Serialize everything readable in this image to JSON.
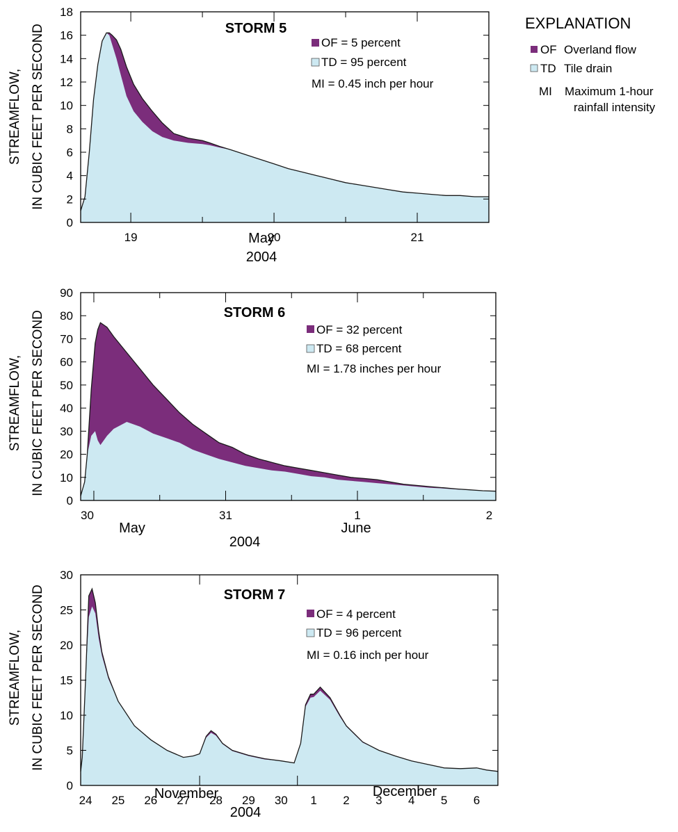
{
  "colors": {
    "overland_flow": "#7b2d7b",
    "tile_drain": "#cde9f2",
    "line": "#1a1a1a",
    "axis": "#000000"
  },
  "explanation": {
    "title": "EXPLANATION",
    "of_code": "OF",
    "of_text": "Overland flow",
    "td_code": "TD",
    "td_text": "Tile drain",
    "mi_code": "MI",
    "mi_text_1": "Maximum 1-hour",
    "mi_text_2": "rainfall intensity"
  },
  "chart_data": [
    {
      "type": "area",
      "title": "STORM 5",
      "legend": [
        "OF = 5 percent",
        "TD = 95 percent",
        "MI = 0.45 inch per hour"
      ],
      "ylabel": [
        "STREAMFLOW,",
        "IN CUBIC FEET PER SECOND"
      ],
      "xlabel": [
        "May",
        "2004"
      ],
      "ylim": [
        0,
        18
      ],
      "yticks": [
        0,
        2,
        4,
        6,
        8,
        10,
        12,
        14,
        16,
        18
      ],
      "x_unit": "days since 2004-05-18 00:00",
      "xlim": [
        0.65,
        3.5
      ],
      "major_ticks": [
        1.0,
        2.0,
        3.0
      ],
      "minor_ticks": [
        1.5,
        2.5
      ],
      "tick_labels": [
        {
          "x": 1.0,
          "text": "19"
        },
        {
          "x": 2.0,
          "text": "20"
        },
        {
          "x": 3.0,
          "text": "21"
        }
      ],
      "series": [
        {
          "name": "Overland flow",
          "key": "total",
          "x": [
            0.65,
            0.68,
            0.71,
            0.74,
            0.77,
            0.8,
            0.83,
            0.85,
            0.87,
            0.9,
            0.93,
            0.97,
            1.02,
            1.08,
            1.15,
            1.22,
            1.3,
            1.4,
            1.5,
            1.55,
            1.62,
            1.7,
            1.8,
            1.9,
            2.0,
            2.1,
            2.2,
            2.3,
            2.4,
            2.5,
            2.6,
            2.7,
            2.8,
            2.9,
            3.0,
            3.1,
            3.2,
            3.3,
            3.4,
            3.5
          ],
          "values": [
            1.0,
            2.2,
            6.0,
            10.5,
            13.5,
            15.5,
            16.2,
            16.2,
            16.0,
            15.6,
            14.8,
            13.3,
            11.8,
            10.6,
            9.5,
            8.5,
            7.6,
            7.2,
            7.0,
            6.8,
            6.5,
            6.2,
            5.8,
            5.4,
            5.0,
            4.6,
            4.3,
            4.0,
            3.7,
            3.4,
            3.2,
            3.0,
            2.8,
            2.6,
            2.5,
            2.4,
            2.3,
            2.3,
            2.2,
            2.2
          ]
        },
        {
          "name": "Tile drain",
          "key": "td",
          "x": [
            0.65,
            0.68,
            0.71,
            0.74,
            0.77,
            0.8,
            0.83,
            0.85,
            0.87,
            0.9,
            0.93,
            0.97,
            1.02,
            1.08,
            1.15,
            1.22,
            1.3,
            1.4,
            1.5,
            1.55,
            1.62,
            1.7,
            1.8,
            1.9,
            2.0,
            2.1,
            2.2,
            2.3,
            2.4,
            2.5,
            2.6,
            2.7,
            2.8,
            2.9,
            3.0,
            3.1,
            3.2,
            3.3,
            3.4,
            3.5
          ],
          "values": [
            1.0,
            2.2,
            6.0,
            10.5,
            13.5,
            15.5,
            16.2,
            16.0,
            15.2,
            14.0,
            12.6,
            10.8,
            9.5,
            8.6,
            7.8,
            7.3,
            7.0,
            6.8,
            6.7,
            6.6,
            6.4,
            6.2,
            5.8,
            5.4,
            5.0,
            4.6,
            4.3,
            4.0,
            3.7,
            3.4,
            3.2,
            3.0,
            2.8,
            2.6,
            2.5,
            2.4,
            2.3,
            2.3,
            2.2,
            2.2
          ]
        }
      ]
    },
    {
      "type": "area",
      "title": "STORM 6",
      "legend": [
        "OF = 32 percent",
        "TD = 68 percent",
        "MI = 1.78 inches per hour"
      ],
      "ylabel": [
        "STREAMFLOW,",
        "IN CUBIC FEET PER SECOND"
      ],
      "xlabel": [
        "May",
        "June",
        "2004"
      ],
      "ylim": [
        0,
        90
      ],
      "yticks": [
        0,
        10,
        20,
        30,
        40,
        50,
        60,
        70,
        80,
        90
      ],
      "x_unit": "days since 2004-05-30 00:00",
      "xlim": [
        -0.05,
        3.1
      ],
      "major_ticks": [
        0.05,
        1.05,
        2.05
      ],
      "minor_ticks": [
        0.55,
        1.55,
        2.55
      ],
      "tick_labels": [
        {
          "x": 0.0,
          "text": "30"
        },
        {
          "x": 1.05,
          "text": "31"
        },
        {
          "x": 2.05,
          "text": "1"
        },
        {
          "x": 3.05,
          "text": "2"
        }
      ],
      "series": [
        {
          "name": "Overland flow",
          "key": "total",
          "x": [
            -0.05,
            -0.02,
            0.0,
            0.03,
            0.06,
            0.08,
            0.1,
            0.15,
            0.2,
            0.3,
            0.4,
            0.5,
            0.6,
            0.7,
            0.8,
            0.9,
            1.0,
            1.1,
            1.2,
            1.3,
            1.4,
            1.5,
            1.6,
            1.7,
            1.8,
            1.9,
            2.0,
            2.1,
            2.2,
            2.3,
            2.4,
            2.5,
            2.6,
            2.7,
            2.8,
            2.9,
            3.0,
            3.1
          ],
          "values": [
            2,
            8,
            20,
            48,
            68,
            74,
            77,
            75,
            71,
            64,
            57,
            50,
            44,
            38,
            33,
            29,
            25,
            23,
            20,
            18,
            16.5,
            15,
            14,
            13,
            12,
            11,
            10,
            9.5,
            9,
            8,
            7,
            6.5,
            6,
            5.5,
            5,
            4.6,
            4.2,
            4
          ]
        },
        {
          "name": "Tile drain",
          "key": "td",
          "x": [
            -0.05,
            -0.02,
            0.0,
            0.03,
            0.06,
            0.08,
            0.1,
            0.15,
            0.2,
            0.3,
            0.4,
            0.5,
            0.6,
            0.7,
            0.8,
            0.9,
            1.0,
            1.1,
            1.2,
            1.3,
            1.4,
            1.5,
            1.6,
            1.7,
            1.8,
            1.9,
            2.0,
            2.1,
            2.2,
            2.3,
            2.4,
            2.5,
            2.6,
            2.7,
            2.8,
            2.9,
            3.0,
            3.1
          ],
          "values": [
            2,
            8,
            20,
            28,
            30,
            26,
            24,
            28,
            31,
            34,
            32,
            29,
            27,
            25,
            22,
            20,
            18,
            16.5,
            15,
            14,
            13,
            12.5,
            11.5,
            10.5,
            10,
            9,
            8.5,
            8,
            7.5,
            7,
            6.5,
            6,
            5.5,
            5.2,
            4.8,
            4.5,
            4.2,
            4
          ]
        }
      ]
    },
    {
      "type": "area",
      "title": "STORM 7",
      "legend": [
        "OF = 4 percent",
        "TD = 96 percent",
        "MI = 0.16 inch per hour"
      ],
      "ylabel": [
        "STREAMFLOW,",
        "IN CUBIC FEET PER SECOND"
      ],
      "xlabel": [
        "November",
        "December",
        "2004"
      ],
      "ylim": [
        0,
        30
      ],
      "yticks": [
        0,
        5,
        10,
        15,
        20,
        25,
        30
      ],
      "x_unit": "days since 2004-11-24 00:00",
      "xlim": [
        -0.15,
        12.65
      ],
      "major_ticks": [
        3.5,
        6.5
      ],
      "minor_ticks": [],
      "tick_labels": [
        {
          "x": 0,
          "text": "24"
        },
        {
          "x": 1,
          "text": "25"
        },
        {
          "x": 2,
          "text": "26"
        },
        {
          "x": 3,
          "text": "27"
        },
        {
          "x": 4,
          "text": "28"
        },
        {
          "x": 5,
          "text": "29"
        },
        {
          "x": 6,
          "text": "30"
        },
        {
          "x": 7,
          "text": "1"
        },
        {
          "x": 8,
          "text": "2"
        },
        {
          "x": 9,
          "text": "3"
        },
        {
          "x": 10,
          "text": "4"
        },
        {
          "x": 11,
          "text": "5"
        },
        {
          "x": 12,
          "text": "6"
        }
      ],
      "series": [
        {
          "name": "Overland flow",
          "key": "total",
          "x": [
            -0.15,
            -0.1,
            0.0,
            0.1,
            0.2,
            0.3,
            0.4,
            0.5,
            0.7,
            1.0,
            1.5,
            2.0,
            2.5,
            3.0,
            3.3,
            3.5,
            3.7,
            3.85,
            4.0,
            4.2,
            4.5,
            5.0,
            5.5,
            6.0,
            6.4,
            6.6,
            6.75,
            6.9,
            7.0,
            7.2,
            7.5,
            7.8,
            8.0,
            8.5,
            9.0,
            9.5,
            10.0,
            10.5,
            11.0,
            11.5,
            12.0,
            12.3,
            12.65
          ],
          "values": [
            2,
            4,
            15,
            27,
            28,
            26,
            22,
            19,
            15.5,
            12,
            8.5,
            6.5,
            5,
            4,
            4.2,
            4.5,
            7,
            7.8,
            7.3,
            6,
            5,
            4.3,
            3.8,
            3.5,
            3.2,
            6,
            11.5,
            13,
            13,
            14,
            12.5,
            10,
            8.5,
            6.2,
            5,
            4.2,
            3.5,
            3,
            2.5,
            2.4,
            2.5,
            2.2,
            2.0
          ]
        },
        {
          "name": "Tile drain",
          "key": "td",
          "x": [
            -0.15,
            -0.1,
            0.0,
            0.1,
            0.2,
            0.3,
            0.4,
            0.5,
            0.7,
            1.0,
            1.5,
            2.0,
            2.5,
            3.0,
            3.3,
            3.5,
            3.7,
            3.85,
            4.0,
            4.2,
            4.5,
            5.0,
            5.5,
            6.0,
            6.4,
            6.6,
            6.75,
            6.9,
            7.0,
            7.2,
            7.5,
            7.8,
            8.0,
            8.5,
            9.0,
            9.5,
            10.0,
            10.5,
            11.0,
            11.5,
            12.0,
            12.3,
            12.65
          ],
          "values": [
            2,
            4,
            15,
            24,
            25.5,
            24.5,
            21,
            18.5,
            15.2,
            12,
            8.5,
            6.5,
            5,
            4,
            4.2,
            4.5,
            6.8,
            7.5,
            7.1,
            5.9,
            4.9,
            4.2,
            3.7,
            3.5,
            3.2,
            6,
            11.2,
            12.5,
            12.6,
            13.5,
            12.2,
            9.8,
            8.4,
            6.1,
            5,
            4.2,
            3.5,
            3,
            2.5,
            2.4,
            2.5,
            2.2,
            2.0
          ]
        }
      ]
    }
  ]
}
